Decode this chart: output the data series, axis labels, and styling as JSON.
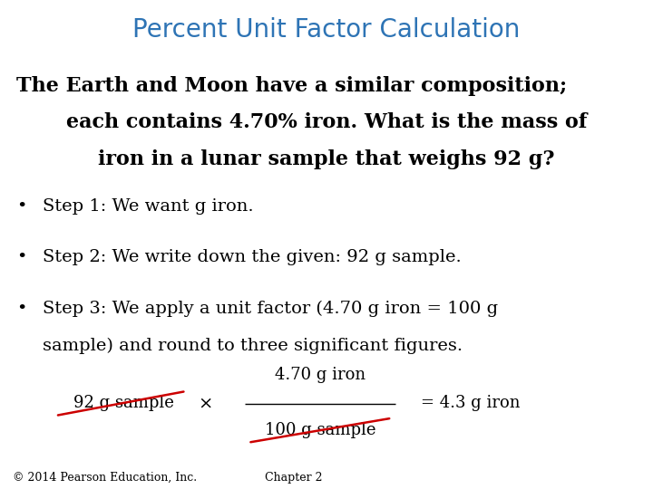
{
  "title": "Percent Unit Factor Calculation",
  "title_color": "#2E74B5",
  "title_fontsize": 20,
  "bg_color": "#FFFFFF",
  "bold_paragraph_lines": [
    "The Earth and Moon have a similar composition;",
    "each contains 4.70% iron. What is the mass of",
    "iron in a lunar sample that weighs 92 g?"
  ],
  "bold_fontsize": 16,
  "bullet_items": [
    "Step 1: We want g iron.",
    "Step 2: We write down the given: 92 g sample.",
    "Step 3: We apply a unit factor (4.70 g iron = 100 g\n    sample) and round to three significant figures."
  ],
  "bullet_fontsize": 14,
  "footer_left": "© 2014 Pearson Education, Inc.",
  "footer_right": "Chapter 2",
  "footer_fontsize": 9,
  "eq_given": "92 g sample",
  "eq_multiply": "×",
  "eq_numerator": "4.70 g iron",
  "eq_denominator": "100 g sample",
  "eq_result": "= 4.3 g iron",
  "eq_fontsize": 13,
  "strikethrough_color": "#CC0000"
}
